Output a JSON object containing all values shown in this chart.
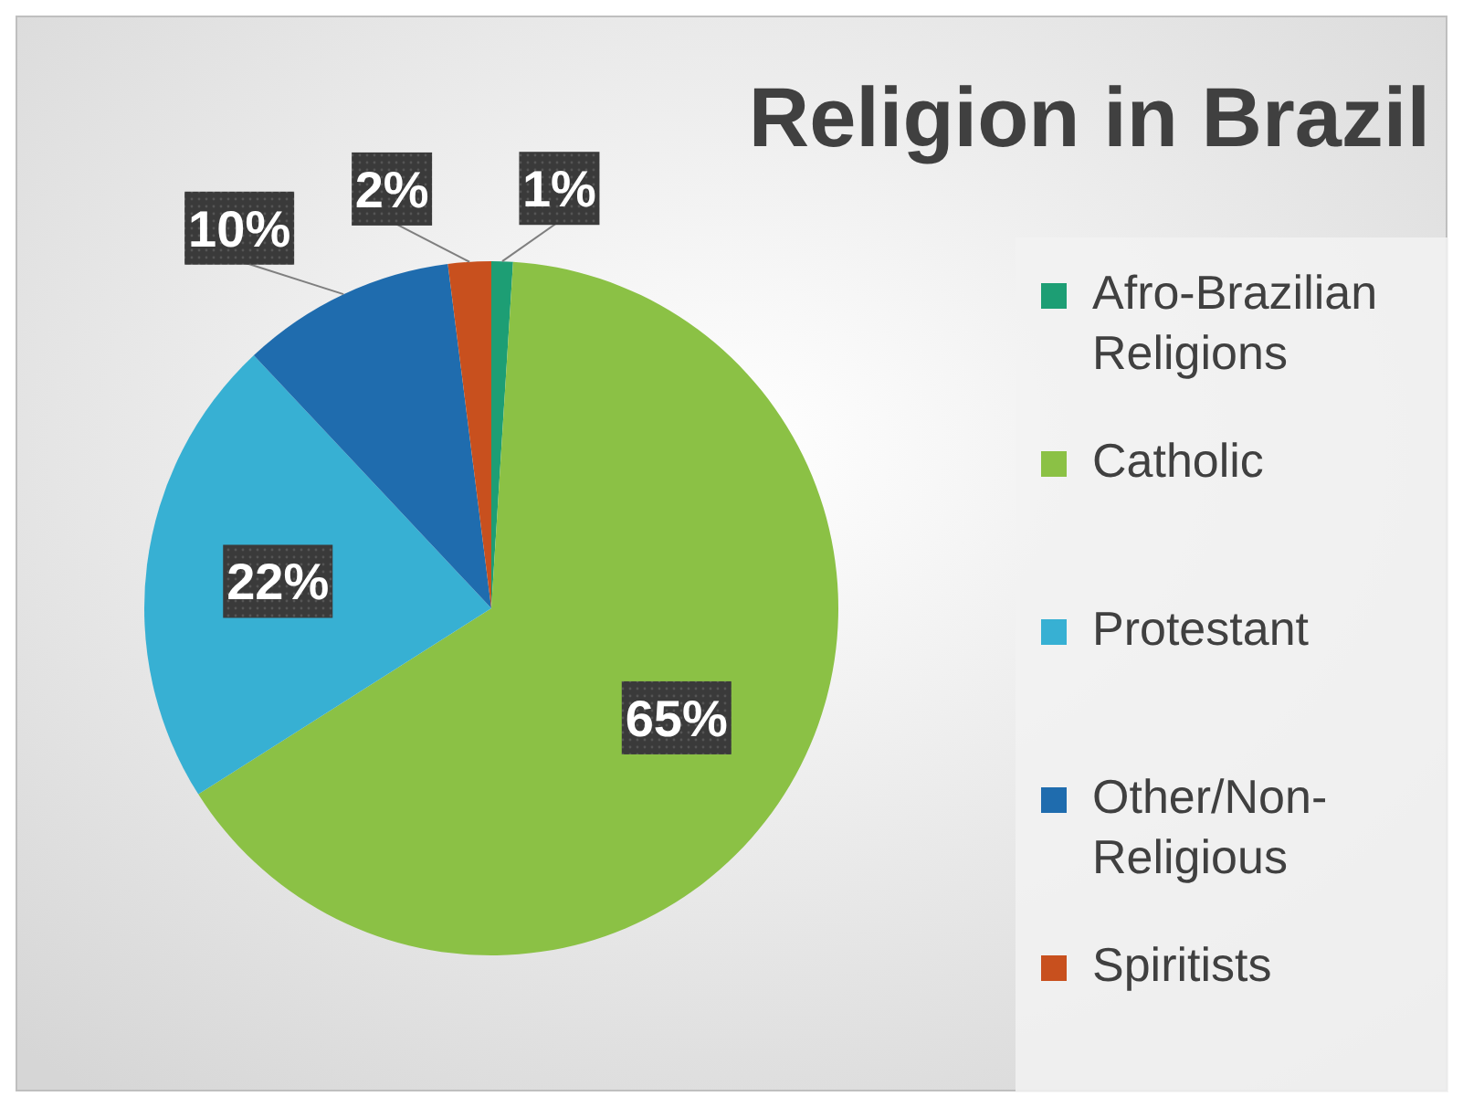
{
  "chart_data": {
    "type": "pie",
    "title": "Religion in Brazil",
    "categories": [
      "Afro-Brazilian Religions",
      "Catholic",
      "Protestant",
      "Other/Non-Religious",
      "Spiritists"
    ],
    "values": [
      1,
      65,
      22,
      10,
      2
    ],
    "colors": [
      "#1d9e74",
      "#8bc145",
      "#37b0d3",
      "#1f6cae",
      "#c8501e"
    ],
    "value_labels": [
      "1%",
      "65%",
      "22%",
      "10%",
      "2%"
    ],
    "legend": "right"
  }
}
